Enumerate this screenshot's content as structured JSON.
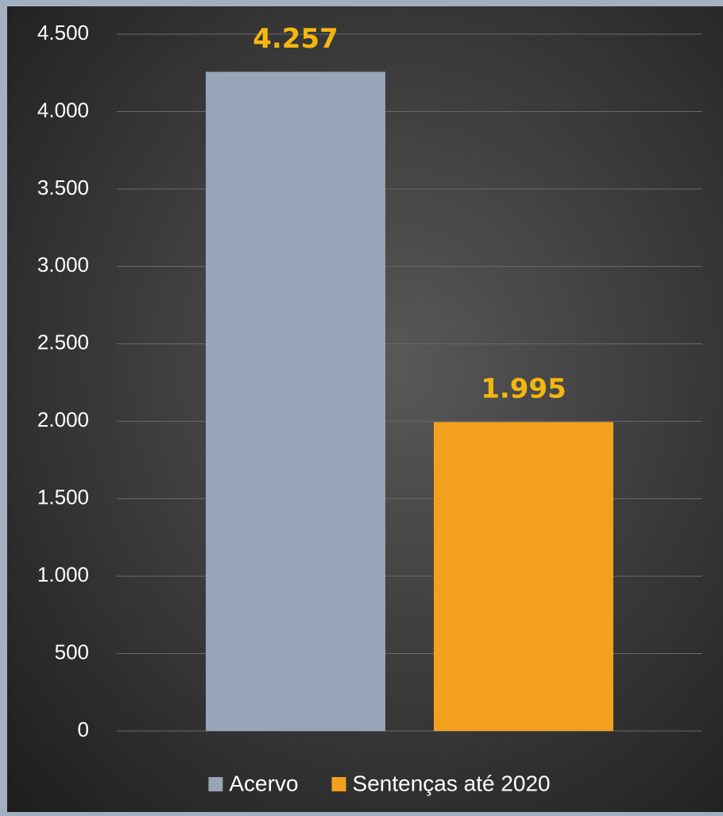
{
  "chart_data": {
    "type": "bar",
    "categories": [
      null
    ],
    "series": [
      {
        "name": "Acervo",
        "color": "#96a6b8",
        "values": [
          4257
        ],
        "value_labels": [
          "4.257"
        ]
      },
      {
        "name": "Sentenças até 2020",
        "color": "#f2a01e",
        "values": [
          1995
        ],
        "value_labels": [
          "1.995"
        ]
      }
    ],
    "ylim": [
      0,
      4500
    ],
    "yticks": [
      {
        "value": 0,
        "label": "0"
      },
      {
        "value": 500,
        "label": "500"
      },
      {
        "value": 1000,
        "label": "1.000"
      },
      {
        "value": 1500,
        "label": "1.500"
      },
      {
        "value": 2000,
        "label": "2.000"
      },
      {
        "value": 2500,
        "label": "2.500"
      },
      {
        "value": 3000,
        "label": "3.000"
      },
      {
        "value": 3500,
        "label": "3.500"
      },
      {
        "value": 4000,
        "label": "4.000"
      },
      {
        "value": 4500,
        "label": "4.500"
      }
    ],
    "grid": true,
    "legend": "bottom",
    "value_label_color": "#f5b70f"
  }
}
